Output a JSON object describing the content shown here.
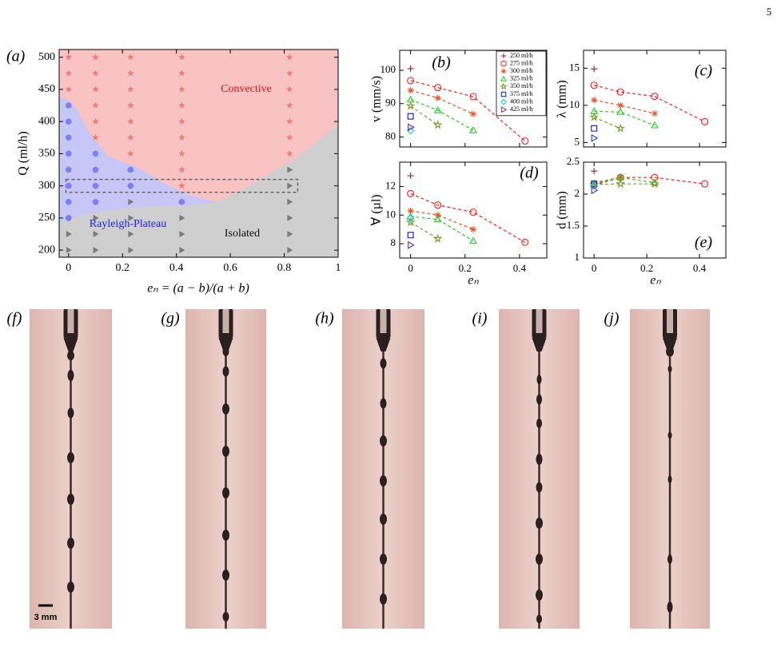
{
  "page_number": "5",
  "chart_data": [
    {
      "type": "scatter",
      "panel_label": "(a)",
      "xlabel": "eₙ = (a − b)/(a + b)",
      "ylabel": "Q (ml/h)",
      "xlim": [
        -0.035,
        1
      ],
      "ylim": [
        189,
        512
      ],
      "xticks": [
        0,
        0.2,
        0.4,
        0.6,
        0.8,
        1
      ],
      "yticks": [
        200,
        250,
        300,
        350,
        400,
        450,
        500
      ],
      "regions": [
        {
          "label": "Convective",
          "color": "#fac3c3",
          "label_color": "#e01010",
          "x": [
            -0.035,
            1,
            1,
            -0.035
          ],
          "y": [
            512,
            512,
            189,
            189
          ]
        },
        {
          "label": "Isolated",
          "color": "#cfcfcf",
          "label_color": "#111111",
          "x": [
            -0.035,
            -0.035,
            0.05,
            0.15,
            0.3,
            0.45,
            0.55,
            0.65,
            0.75,
            0.85,
            1,
            1
          ],
          "y": [
            189,
            240,
            255,
            262,
            268,
            270,
            275,
            295,
            320,
            345,
            395,
            189
          ]
        },
        {
          "label": "Rayleigh-Plateau",
          "color": "#c6c6f7",
          "label_color": "#2020e0",
          "x": [
            -0.035,
            0,
            0.03,
            0.08,
            0.15,
            0.25,
            0.35,
            0.45,
            0.55,
            0.45,
            0.3,
            0.15,
            0.05,
            -0.035
          ],
          "y": [
            440,
            432,
            420,
            380,
            345,
            330,
            305,
            285,
            275,
            270,
            268,
            262,
            255,
            240
          ]
        }
      ],
      "highlight_box": {
        "x": [
          -0.01,
          0.85
        ],
        "y": [
          290,
          310
        ]
      },
      "series": [
        {
          "marker": "star",
          "marker_fill": true,
          "color": "#f07878",
          "x": [
            0,
            0,
            0,
            0.1,
            0.1,
            0.1,
            0.1,
            0.1,
            0.1,
            0.23,
            0.23,
            0.23,
            0.23,
            0.23,
            0.23,
            0.23,
            0.42,
            0.42,
            0.42,
            0.42,
            0.42,
            0.42,
            0.42,
            0.42,
            0.42,
            0.82,
            0.82,
            0.82,
            0.82,
            0.82,
            0.82,
            0.82
          ],
          "y": [
            500,
            475,
            450,
            500,
            475,
            450,
            425,
            400,
            375,
            500,
            475,
            450,
            425,
            400,
            375,
            350,
            500,
            475,
            450,
            425,
            400,
            375,
            350,
            325,
            300,
            500,
            475,
            450,
            425,
            400,
            375,
            350
          ]
        },
        {
          "marker": "circle",
          "marker_fill": true,
          "color": "#7f7ff5",
          "x": [
            0,
            0,
            0,
            0,
            0,
            0,
            0,
            0,
            0.1,
            0.1,
            0.1,
            0.1,
            0.23,
            0.23,
            0.42
          ],
          "y": [
            425,
            400,
            375,
            350,
            325,
            300,
            275,
            250,
            350,
            325,
            300,
            275,
            325,
            300,
            275
          ]
        },
        {
          "marker": "triangle-right",
          "marker_fill": true,
          "color": "#7a7a7a",
          "x": [
            0,
            0,
            0.1,
            0.1,
            0.1,
            0.23,
            0.23,
            0.23,
            0.23,
            0.42,
            0.42,
            0.42,
            0.82,
            0.82,
            0.82,
            0.82,
            0.82,
            0.82
          ],
          "y": [
            225,
            200,
            250,
            225,
            200,
            275,
            250,
            225,
            200,
            250,
            225,
            200,
            325,
            300,
            275,
            250,
            225,
            200
          ]
        }
      ]
    },
    {
      "type": "scatter",
      "panel_label": "(b)",
      "ylabel": "v (mm/s)",
      "xlim": [
        -0.04,
        0.5
      ],
      "ylim": [
        77,
        106
      ],
      "xticks": [
        0,
        0.2,
        0.4
      ],
      "xtick_labels": false,
      "yticks": [
        80,
        90,
        100
      ],
      "linestyle": "dashed",
      "legend": "upper right",
      "series": [
        {
          "name": "250 ml/h",
          "marker": "plus",
          "color": "#9b1b30",
          "x": [
            0
          ],
          "values": [
            100.5
          ]
        },
        {
          "name": "275 ml/h",
          "marker": "circle",
          "color": "#ff1a1a",
          "x": [
            0,
            0.1,
            0.23,
            0.42
          ],
          "values": [
            96.9,
            94.8,
            92.1,
            78.8
          ]
        },
        {
          "name": "300 ml/h",
          "marker": "asterisk",
          "color": "#e8542a",
          "x": [
            0,
            0.1,
            0.23
          ],
          "values": [
            94,
            91.7,
            86.9
          ]
        },
        {
          "name": "325 ml/h",
          "marker": "triangle",
          "color": "#22cc22",
          "x": [
            0,
            0.1,
            0.23
          ],
          "values": [
            91.2,
            88,
            82
          ]
        },
        {
          "name": "350 ml/h",
          "marker": "star",
          "color": "#7a9a2a",
          "x": [
            0,
            0.1
          ],
          "values": [
            89.3,
            83.6
          ]
        },
        {
          "name": "375 ml/h",
          "marker": "square",
          "color": "#1010cc",
          "x": [
            0
          ],
          "values": [
            86.2
          ]
        },
        {
          "name": "400 ml/h",
          "marker": "diamond",
          "color": "#10c8d8",
          "x": [
            0
          ],
          "values": [
            81.9
          ]
        },
        {
          "name": "425 ml/h",
          "marker": "triangle-right",
          "color": "#6a2aa8",
          "x": [
            0
          ],
          "values": [
            82.9
          ]
        }
      ]
    },
    {
      "type": "scatter",
      "panel_label": "(c)",
      "ylabel": "λ (mm)",
      "xlim": [
        -0.04,
        0.5
      ],
      "ylim": [
        4.4,
        17.4
      ],
      "xticks": [
        0,
        0.2,
        0.4
      ],
      "xtick_labels": false,
      "yticks": [
        5,
        10,
        15
      ],
      "linestyle": "dashed",
      "series": [
        {
          "marker": "plus",
          "color": "#9b1b30",
          "x": [
            0
          ],
          "values": [
            14.9
          ]
        },
        {
          "marker": "circle",
          "color": "#ff1a1a",
          "x": [
            0,
            0.1,
            0.23,
            0.42
          ],
          "values": [
            12.7,
            11.8,
            11.2,
            7.8
          ]
        },
        {
          "marker": "asterisk",
          "color": "#e8542a",
          "x": [
            0,
            0.1,
            0.23
          ],
          "values": [
            10.7,
            10,
            8.9
          ]
        },
        {
          "marker": "triangle",
          "color": "#22cc22",
          "x": [
            0,
            0.1,
            0.23
          ],
          "values": [
            9.2,
            9.1,
            7.3
          ]
        },
        {
          "marker": "star",
          "color": "#7a9a2a",
          "x": [
            0,
            0.1
          ],
          "values": [
            8.4,
            6.9
          ]
        },
        {
          "marker": "square",
          "color": "#1010cc",
          "x": [
            0
          ],
          "values": [
            6.9
          ]
        },
        {
          "marker": "triangle-right",
          "color": "#1a3ad0",
          "x": [
            0
          ],
          "values": [
            5.6
          ]
        }
      ]
    },
    {
      "type": "scatter",
      "panel_label": "(d)",
      "xlabel": "eₙ",
      "ylabel": "∀ (µl)",
      "xlim": [
        -0.04,
        0.5
      ],
      "ylim": [
        7,
        13.7
      ],
      "xticks": [
        0,
        0.2,
        0.4
      ],
      "yticks": [
        8,
        10,
        12
      ],
      "linestyle": "dashed",
      "series": [
        {
          "marker": "plus",
          "color": "#9b1b30",
          "x": [
            0
          ],
          "values": [
            12.75
          ]
        },
        {
          "marker": "circle",
          "color": "#ff1a1a",
          "x": [
            0,
            0.1,
            0.23,
            0.42
          ],
          "values": [
            11.5,
            10.7,
            10.2,
            8.1
          ]
        },
        {
          "marker": "asterisk",
          "color": "#e8542a",
          "x": [
            0,
            0.1,
            0.23
          ],
          "values": [
            10.3,
            10,
            9
          ]
        },
        {
          "marker": "triangle",
          "color": "#22cc22",
          "x": [
            0,
            0.1,
            0.23
          ],
          "values": [
            9.9,
            9.7,
            8.2
          ]
        },
        {
          "marker": "star",
          "color": "#7a9a2a",
          "x": [
            0,
            0.1
          ],
          "values": [
            9.5,
            8.35
          ]
        },
        {
          "marker": "square",
          "color": "#1010cc",
          "x": [
            0
          ],
          "values": [
            8.6
          ]
        },
        {
          "marker": "diamond",
          "color": "#10c8d8",
          "x": [
            0
          ],
          "values": [
            9.8
          ]
        },
        {
          "marker": "triangle-right",
          "color": "#6a2aa8",
          "x": [
            0
          ],
          "values": [
            7.9
          ]
        }
      ]
    },
    {
      "type": "scatter",
      "panel_label": "(e)",
      "xlabel": "eₙ",
      "ylabel": "d (mm)",
      "xlim": [
        -0.04,
        0.5
      ],
      "ylim": [
        1,
        2.5
      ],
      "xticks": [
        0,
        0.2,
        0.4
      ],
      "yticks": [
        1,
        1.5,
        2,
        2.5
      ],
      "linestyle": "dashed",
      "series": [
        {
          "marker": "plus",
          "color": "#9b1b30",
          "x": [
            0
          ],
          "values": [
            2.36
          ]
        },
        {
          "marker": "circle",
          "color": "#ff1a1a",
          "x": [
            0,
            0.1,
            0.23,
            0.42
          ],
          "values": [
            2.14,
            2.26,
            2.26,
            2.16
          ]
        },
        {
          "marker": "asterisk",
          "color": "#e8542a",
          "x": [
            0,
            0.1
          ],
          "values": [
            2.18,
            2.26
          ]
        },
        {
          "marker": "triangle",
          "color": "#22cc22",
          "x": [
            0,
            0.1,
            0.23
          ],
          "values": [
            2.16,
            2.26,
            2.18
          ]
        },
        {
          "marker": "star",
          "color": "#7a9a2a",
          "x": [
            0,
            0.1,
            0.23
          ],
          "values": [
            2.15,
            2.16,
            2.16
          ]
        },
        {
          "marker": "square",
          "color": "#1010cc",
          "x": [
            0
          ],
          "values": [
            2.16
          ]
        },
        {
          "marker": "diamond",
          "color": "#10c8d8",
          "x": [
            0
          ],
          "values": [
            2.14
          ]
        },
        {
          "marker": "triangle-right",
          "color": "#1a3ad0",
          "x": [
            0
          ],
          "values": [
            2.06
          ]
        }
      ]
    }
  ],
  "photos": {
    "labels": [
      "(f)",
      "(g)",
      "(h)",
      "(i)",
      "(j)"
    ],
    "scale_bar": "3 mm"
  }
}
